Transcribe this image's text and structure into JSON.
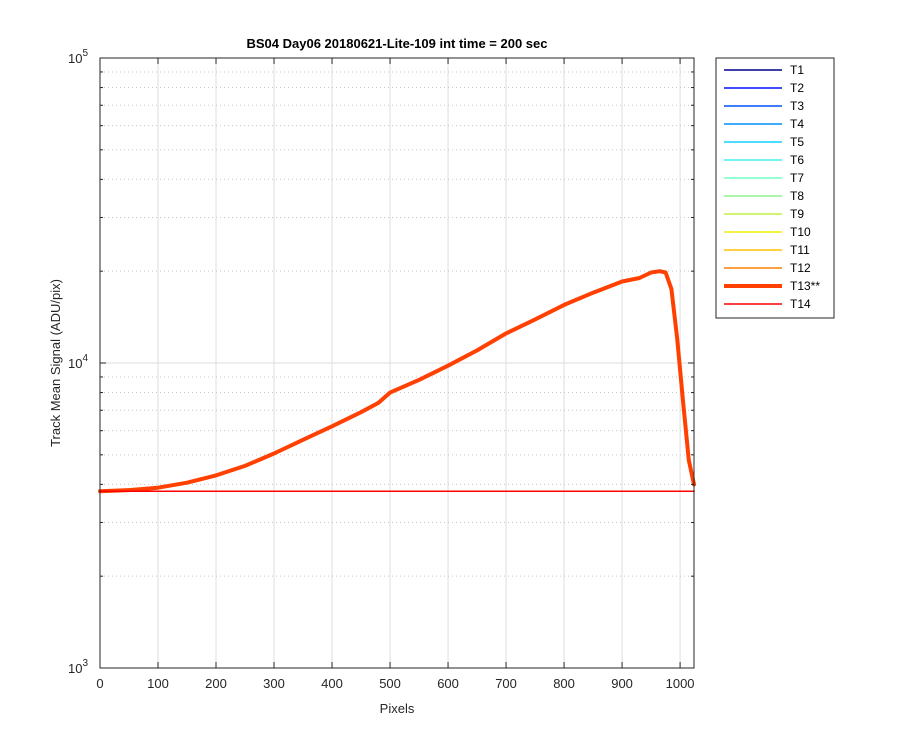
{
  "chart_data": {
    "type": "line",
    "title": "BS04 Day06 20180621-Lite-109 int time = 200 sec",
    "xlabel": "Pixels",
    "ylabel": "Track Mean Signal (ADU/pix)",
    "xlim": [
      0,
      1024
    ],
    "ylim": [
      1000,
      100000
    ],
    "yscale": "log",
    "grid": true,
    "legend_position": "outside-right",
    "x_ticks": [
      0,
      100,
      200,
      300,
      400,
      500,
      600,
      700,
      800,
      900,
      1000
    ],
    "y_ticks": [
      {
        "value": 1000,
        "base": "10",
        "exp": "3"
      },
      {
        "value": 10000,
        "base": "10",
        "exp": "4"
      },
      {
        "value": 100000,
        "base": "10",
        "exp": "5"
      }
    ],
    "series": [
      {
        "name": "T1",
        "color": "#00008F",
        "width": 1.5,
        "points": [
          [
            0,
            3800
          ],
          [
            1024,
            3800
          ]
        ]
      },
      {
        "name": "T2",
        "color": "#0010FF",
        "width": 1.5,
        "points": [
          [
            0,
            3800
          ],
          [
            1024,
            3800
          ]
        ]
      },
      {
        "name": "T3",
        "color": "#0050FF",
        "width": 1.5,
        "points": [
          [
            0,
            3800
          ],
          [
            1024,
            3800
          ]
        ]
      },
      {
        "name": "T4",
        "color": "#0090FF",
        "width": 1.5,
        "points": [
          [
            0,
            3800
          ],
          [
            1024,
            3800
          ]
        ]
      },
      {
        "name": "T5",
        "color": "#10D0FF",
        "width": 1.5,
        "points": [
          [
            0,
            3800
          ],
          [
            1024,
            3800
          ]
        ]
      },
      {
        "name": "T6",
        "color": "#40F0F0",
        "width": 1.5,
        "points": [
          [
            0,
            3800
          ],
          [
            1024,
            3800
          ]
        ]
      },
      {
        "name": "T7",
        "color": "#70FFC0",
        "width": 1.5,
        "points": [
          [
            0,
            3800
          ],
          [
            1024,
            3800
          ]
        ]
      },
      {
        "name": "T8",
        "color": "#90F090",
        "width": 1.5,
        "points": [
          [
            0,
            3800
          ],
          [
            1024,
            3800
          ]
        ]
      },
      {
        "name": "T9",
        "color": "#C0F040",
        "width": 1.5,
        "points": [
          [
            0,
            3800
          ],
          [
            1024,
            3800
          ]
        ]
      },
      {
        "name": "T10",
        "color": "#F0F000",
        "width": 1.5,
        "points": [
          [
            0,
            3800
          ],
          [
            1024,
            3800
          ]
        ]
      },
      {
        "name": "T11",
        "color": "#FFC000",
        "width": 1.5,
        "points": [
          [
            0,
            3800
          ],
          [
            1024,
            3800
          ]
        ]
      },
      {
        "name": "T12",
        "color": "#FF8000",
        "width": 1.5,
        "points": [
          [
            0,
            3800
          ],
          [
            1024,
            3800
          ]
        ]
      },
      {
        "name": "T13**",
        "color": "#FF4000",
        "width": 4,
        "points": [
          [
            0,
            3800
          ],
          [
            50,
            3830
          ],
          [
            100,
            3900
          ],
          [
            150,
            4050
          ],
          [
            200,
            4280
          ],
          [
            250,
            4600
          ],
          [
            300,
            5050
          ],
          [
            350,
            5600
          ],
          [
            400,
            6200
          ],
          [
            450,
            6900
          ],
          [
            480,
            7400
          ],
          [
            500,
            8000
          ],
          [
            550,
            8800
          ],
          [
            600,
            9800
          ],
          [
            650,
            11000
          ],
          [
            700,
            12500
          ],
          [
            750,
            13900
          ],
          [
            800,
            15500
          ],
          [
            850,
            17000
          ],
          [
            900,
            18500
          ],
          [
            930,
            19000
          ],
          [
            950,
            19800
          ],
          [
            965,
            20000
          ],
          [
            975,
            19800
          ],
          [
            985,
            17500
          ],
          [
            995,
            12000
          ],
          [
            1005,
            7500
          ],
          [
            1015,
            4800
          ],
          [
            1024,
            4000
          ]
        ]
      },
      {
        "name": "T14",
        "color": "#FF0000",
        "width": 1.5,
        "points": [
          [
            0,
            3800
          ],
          [
            1024,
            3800
          ]
        ]
      }
    ]
  }
}
